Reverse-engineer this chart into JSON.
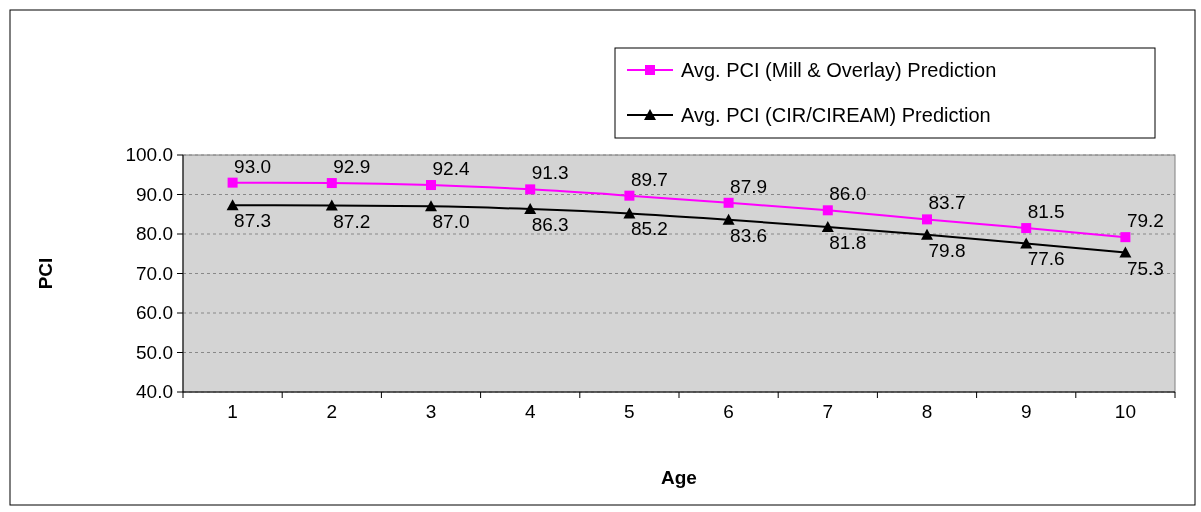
{
  "chart_data": {
    "type": "line",
    "xlabel": "Age",
    "ylabel": "PCI",
    "categories": [
      "1",
      "2",
      "3",
      "4",
      "5",
      "6",
      "7",
      "8",
      "9",
      "10"
    ],
    "series": [
      {
        "name": "Avg. PCI (Mill & Overlay) Prediction",
        "color": "#ff00ff",
        "marker": "square",
        "values": [
          93.0,
          92.9,
          92.4,
          91.3,
          89.7,
          87.9,
          86.0,
          83.7,
          81.5,
          79.2
        ],
        "value_labels": [
          "93.0",
          "92.9",
          "92.4",
          "91.3",
          "89.7",
          "87.9",
          "86.0",
          "83.7",
          "81.5",
          "79.2"
        ]
      },
      {
        "name": "Avg. PCI (CIR/CIREAM) Prediction",
        "color": "#000000",
        "marker": "triangle",
        "values": [
          87.3,
          87.2,
          87.0,
          86.3,
          85.2,
          83.6,
          81.8,
          79.8,
          77.6,
          75.3
        ],
        "value_labels": [
          "87.3",
          "87.2",
          "87.0",
          "86.3",
          "85.2",
          "83.6",
          "81.8",
          "79.8",
          "77.6",
          "75.3"
        ]
      }
    ],
    "ylim": [
      40,
      100
    ],
    "yticks": [
      {
        "value": 40,
        "label": "40.0"
      },
      {
        "value": 50,
        "label": "50.0"
      },
      {
        "value": 60,
        "label": "60.0"
      },
      {
        "value": 70,
        "label": "70.0"
      },
      {
        "value": 80,
        "label": "80.0"
      },
      {
        "value": 90,
        "label": "90.0"
      },
      {
        "value": 100,
        "label": "100.0"
      }
    ],
    "grid": "y",
    "legend": "top right"
  }
}
